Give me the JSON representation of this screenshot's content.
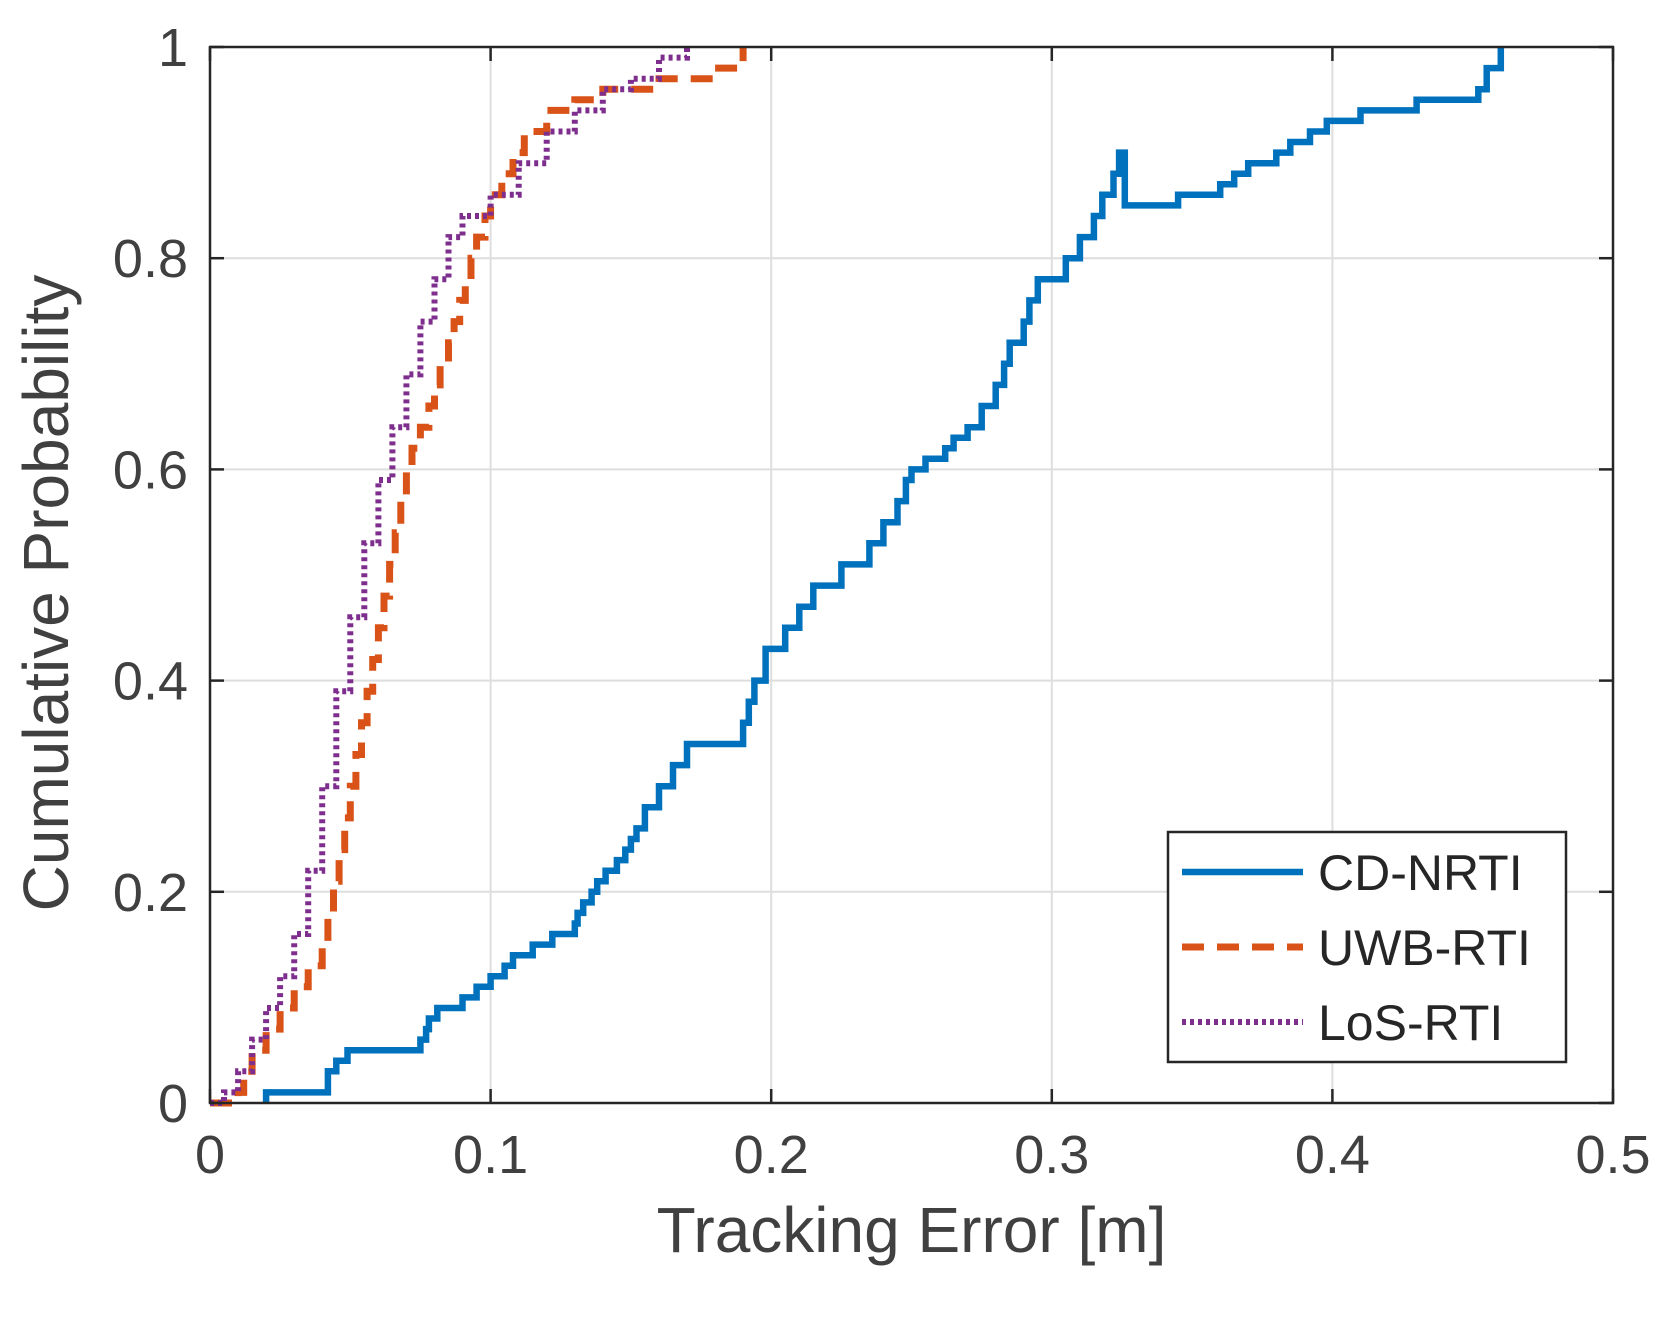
{
  "chart_data": {
    "type": "line",
    "subtype": "empirical CDF (stairs)",
    "title": "",
    "xlabel": "Tracking Error [m]",
    "ylabel": "Cumulative Probability",
    "xlim": [
      0,
      0.5
    ],
    "ylim": [
      0,
      1
    ],
    "xticks": [
      0,
      0.1,
      0.2,
      0.3,
      0.4,
      0.5
    ],
    "yticks": [
      0,
      0.2,
      0.4,
      0.6,
      0.8,
      1
    ],
    "xtick_labels": [
      "0",
      "0.1",
      "0.2",
      "0.3",
      "0.4",
      "0.5"
    ],
    "ytick_labels": [
      "0",
      "0.2",
      "0.4",
      "0.6",
      "0.8",
      "1"
    ],
    "grid": true,
    "legend_position": "bottom-right",
    "series": [
      {
        "name": "CD-NRTI",
        "color": "#0072BD",
        "style": "solid",
        "x": [
          0.02,
          0.042,
          0.045,
          0.049,
          0.075,
          0.077,
          0.078,
          0.081,
          0.09,
          0.095,
          0.1,
          0.105,
          0.108,
          0.115,
          0.122,
          0.13,
          0.131,
          0.133,
          0.136,
          0.138,
          0.141,
          0.145,
          0.148,
          0.15,
          0.152,
          0.155,
          0.16,
          0.165,
          0.17,
          0.19,
          0.192,
          0.194,
          0.198,
          0.205,
          0.21,
          0.215,
          0.225,
          0.235,
          0.24,
          0.245,
          0.248,
          0.25,
          0.255,
          0.262,
          0.265,
          0.27,
          0.275,
          0.28,
          0.283,
          0.285,
          0.29,
          0.292,
          0.295,
          0.305,
          0.31,
          0.315,
          0.318,
          0.322,
          0.324,
          0.326,
          0.345,
          0.36,
          0.365,
          0.37,
          0.38,
          0.385,
          0.392,
          0.398,
          0.41,
          0.43,
          0.452,
          0.455,
          0.46
        ],
        "y": [
          0.01,
          0.03,
          0.04,
          0.05,
          0.06,
          0.07,
          0.08,
          0.09,
          0.1,
          0.11,
          0.12,
          0.13,
          0.14,
          0.15,
          0.16,
          0.17,
          0.18,
          0.19,
          0.2,
          0.21,
          0.22,
          0.23,
          0.24,
          0.25,
          0.26,
          0.28,
          0.3,
          0.32,
          0.34,
          0.36,
          0.38,
          0.4,
          0.43,
          0.45,
          0.47,
          0.49,
          0.51,
          0.53,
          0.55,
          0.57,
          0.59,
          0.6,
          0.61,
          0.62,
          0.63,
          0.64,
          0.66,
          0.68,
          0.7,
          0.72,
          0.74,
          0.76,
          0.78,
          0.8,
          0.82,
          0.84,
          0.86,
          0.88,
          0.9,
          0.85,
          0.86,
          0.87,
          0.88,
          0.89,
          0.9,
          0.91,
          0.92,
          0.93,
          0.94,
          0.95,
          0.96,
          0.98,
          1.0
        ]
      },
      {
        "name": "UWB-RTI",
        "color": "#D95319",
        "style": "dashed",
        "x": [
          0.0,
          0.01,
          0.012,
          0.015,
          0.02,
          0.025,
          0.03,
          0.035,
          0.04,
          0.042,
          0.044,
          0.046,
          0.048,
          0.05,
          0.052,
          0.054,
          0.056,
          0.058,
          0.06,
          0.062,
          0.064,
          0.066,
          0.068,
          0.07,
          0.072,
          0.075,
          0.078,
          0.08,
          0.082,
          0.085,
          0.087,
          0.089,
          0.091,
          0.093,
          0.095,
          0.098,
          0.1,
          0.104,
          0.108,
          0.112,
          0.12,
          0.13,
          0.14,
          0.15,
          0.16,
          0.17,
          0.18,
          0.19
        ],
        "y": [
          0.0,
          0.01,
          0.03,
          0.05,
          0.07,
          0.09,
          0.11,
          0.13,
          0.15,
          0.18,
          0.21,
          0.24,
          0.27,
          0.3,
          0.33,
          0.36,
          0.39,
          0.42,
          0.45,
          0.48,
          0.51,
          0.54,
          0.57,
          0.6,
          0.62,
          0.64,
          0.66,
          0.68,
          0.7,
          0.72,
          0.74,
          0.76,
          0.78,
          0.8,
          0.82,
          0.84,
          0.86,
          0.88,
          0.9,
          0.92,
          0.94,
          0.95,
          0.96,
          0.96,
          0.97,
          0.97,
          0.98,
          1.0
        ]
      },
      {
        "name": "LoS-RTI",
        "color": "#7E2F8E",
        "style": "dotted",
        "x": [
          0.0,
          0.005,
          0.01,
          0.015,
          0.02,
          0.025,
          0.03,
          0.035,
          0.04,
          0.045,
          0.05,
          0.055,
          0.06,
          0.065,
          0.07,
          0.075,
          0.08,
          0.085,
          0.09,
          0.1,
          0.11,
          0.12,
          0.13,
          0.14,
          0.15,
          0.16,
          0.17
        ],
        "y": [
          0.0,
          0.01,
          0.03,
          0.06,
          0.09,
          0.12,
          0.16,
          0.22,
          0.3,
          0.39,
          0.46,
          0.53,
          0.59,
          0.64,
          0.69,
          0.74,
          0.78,
          0.82,
          0.84,
          0.86,
          0.89,
          0.92,
          0.94,
          0.96,
          0.97,
          0.99,
          1.0
        ]
      }
    ]
  }
}
